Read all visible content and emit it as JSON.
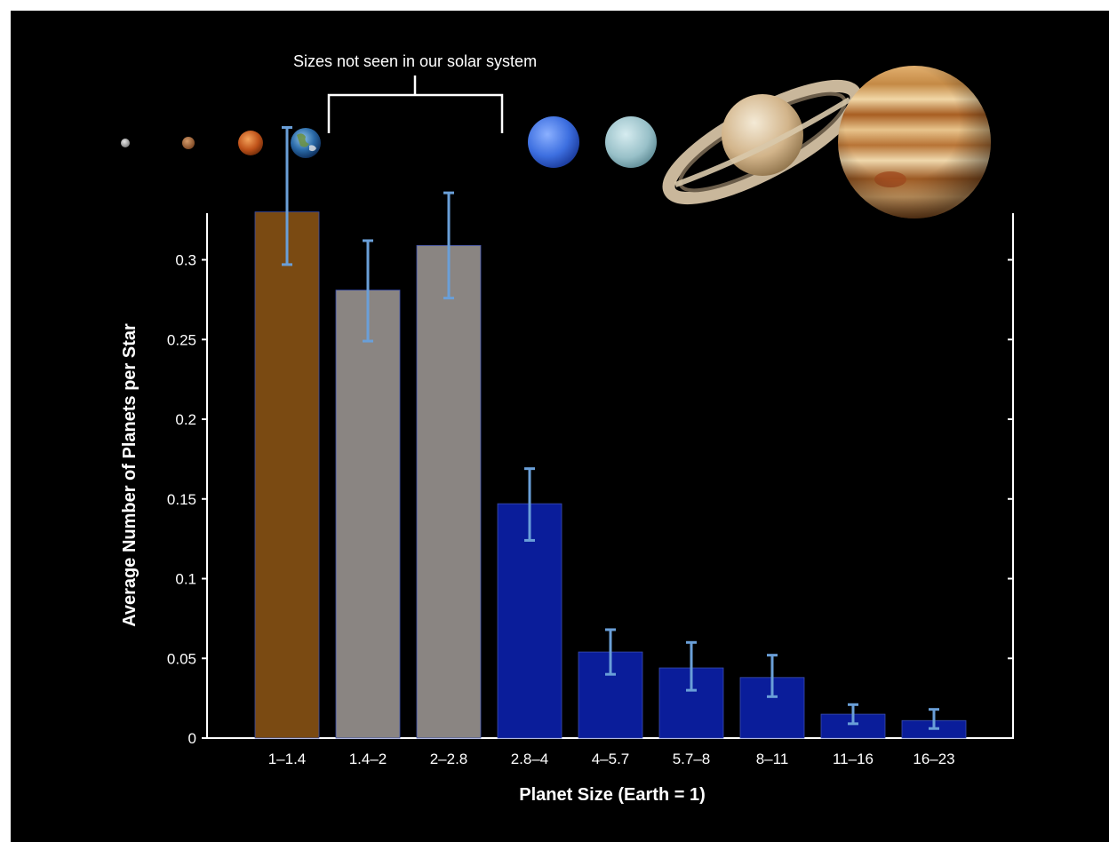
{
  "chart_data": {
    "type": "bar",
    "xlabel": "Planet Size (Earth = 1)",
    "ylabel": "Average Number of Planets per Star",
    "categories": [
      "1–1.4",
      "1.4–2",
      "2–2.8",
      "2.8–4",
      "4–5.7",
      "5.7–8",
      "8–11",
      "11–16",
      "16–23"
    ],
    "values": [
      0.33,
      0.281,
      0.309,
      0.147,
      0.054,
      0.044,
      0.038,
      0.015,
      0.011
    ],
    "error_low": [
      0.297,
      0.249,
      0.276,
      0.124,
      0.04,
      0.03,
      0.026,
      0.009,
      0.006
    ],
    "error_high": [
      0.383,
      0.312,
      0.342,
      0.169,
      0.068,
      0.06,
      0.052,
      0.021,
      0.018
    ],
    "ylim": [
      0,
      0.33
    ],
    "yticks": [
      0,
      0.05,
      0.1,
      0.15,
      0.2,
      0.25,
      0.3
    ],
    "ytick_labels": [
      "0",
      "0.05",
      "0.1",
      "0.15",
      "0.2",
      "0.25",
      "0.3"
    ],
    "grid": false,
    "annotation": "Sizes not seen in our solar system",
    "bar_colors": [
      "#7a4a12",
      "#8a8582",
      "#8a8582",
      "#0a1d9a",
      "#0a1d9a",
      "#0a1d9a",
      "#0a1d9a",
      "#0a1d9a",
      "#0a1d9a"
    ],
    "error_bar_color": "#6a9fd8",
    "background": "#000000",
    "planet_icons": [
      "mercury-icon",
      "mars-icon",
      "venus-icon",
      "earth-icon",
      "neptune-icon",
      "uranus-icon",
      "saturn-icon",
      "jupiter-icon"
    ]
  }
}
